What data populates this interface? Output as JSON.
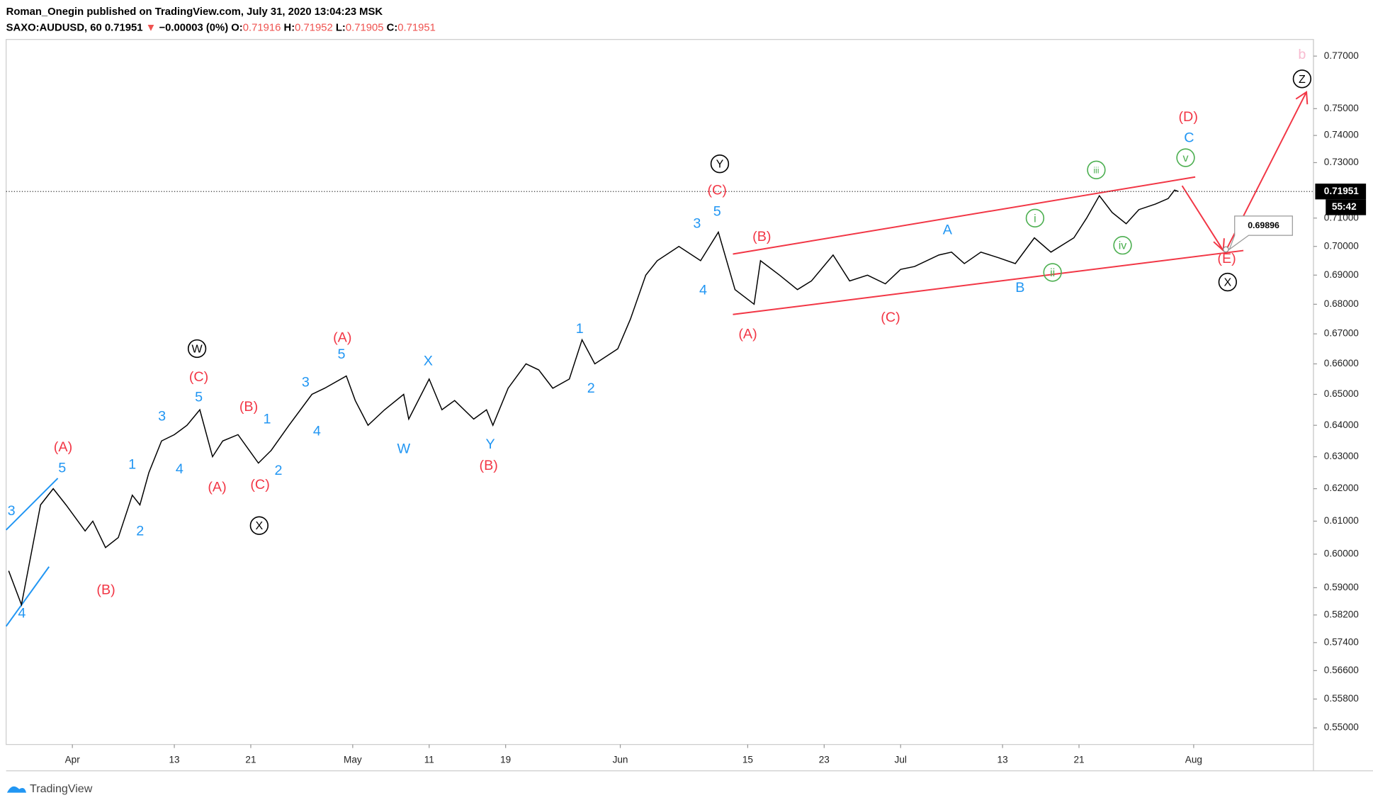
{
  "header": {
    "line1": "Roman_Onegin published on TradingView.com, July 31, 2020 13:04:23 MSK",
    "symbol": "SAXO:AUDUSD, 60",
    "last": "0.71951",
    "arrow": "▼",
    "change": "−0.00003 (0%)",
    "o_label": "O:",
    "o": "0.71916",
    "h_label": "H:",
    "h": "0.71952",
    "l_label": "L:",
    "l": "0.71905",
    "c_label": "C:",
    "c": "0.71951"
  },
  "footer": {
    "brand": "TradingView"
  },
  "chart_data": {
    "type": "line",
    "log_scale": true,
    "color": "#000000",
    "x": [
      -5,
      -4,
      -2.5,
      -1.5,
      -0.5,
      1,
      1.6,
      2.6,
      3.6,
      4.7,
      5.3,
      6,
      7,
      8,
      9,
      10,
      11,
      11.8,
      13,
      14.6,
      15.6,
      17,
      18.8,
      19.8,
      21.5,
      22.2,
      23.2,
      24.5,
      26,
      26.4,
      28,
      29,
      30,
      31.5,
      32.5,
      33,
      34.2,
      35.6,
      36.6,
      37.7,
      39,
      40,
      41,
      42.8,
      43.8,
      45,
      45.9,
      47.6,
      49.3,
      50.7,
      52,
      53.5,
      54,
      55.5,
      56.9,
      58,
      59.7,
      61,
      62.4,
      63.8,
      65,
      66.1,
      68,
      69,
      70,
      71.3,
      72.7,
      74,
      75.5,
      76.8,
      78.6,
      79.6,
      80.6,
      81.6,
      82.7,
      83.7,
      85,
      86,
      86.5,
      86.8
    ],
    "values": [
      0.595,
      0.585,
      0.615,
      0.62,
      0.615,
      0.607,
      0.61,
      0.602,
      0.605,
      0.618,
      0.615,
      0.625,
      0.635,
      0.637,
      0.64,
      0.645,
      0.63,
      0.635,
      0.637,
      0.628,
      0.632,
      0.64,
      0.65,
      0.652,
      0.656,
      0.648,
      0.64,
      0.645,
      0.65,
      0.642,
      0.655,
      0.645,
      0.648,
      0.642,
      0.645,
      0.64,
      0.652,
      0.66,
      0.658,
      0.652,
      0.655,
      0.668,
      0.66,
      0.665,
      0.675,
      0.69,
      0.695,
      0.7,
      0.695,
      0.705,
      0.685,
      0.68,
      0.695,
      0.69,
      0.685,
      0.688,
      0.697,
      0.688,
      0.69,
      0.687,
      0.692,
      0.693,
      0.697,
      0.698,
      0.694,
      0.698,
      0.696,
      0.694,
      0.703,
      0.698,
      0.703,
      0.71,
      0.718,
      0.712,
      0.708,
      0.713,
      0.715,
      0.717,
      0.72,
      0.7195
    ],
    "xlim": [
      -5.2,
      97.4
    ],
    "xticks": [
      {
        "value": 0,
        "label": "Apr"
      },
      {
        "value": 8,
        "label": "13"
      },
      {
        "value": 14,
        "label": "21"
      },
      {
        "value": 22,
        "label": "May"
      },
      {
        "value": 28,
        "label": "11"
      },
      {
        "value": 34,
        "label": "19"
      },
      {
        "value": 43,
        "label": "Jun"
      },
      {
        "value": 53,
        "label": "15"
      },
      {
        "value": 59,
        "label": "23"
      },
      {
        "value": 65,
        "label": "Jul"
      },
      {
        "value": 73,
        "label": "13"
      },
      {
        "value": 79,
        "label": "21"
      },
      {
        "value": 88,
        "label": "Aug"
      }
    ],
    "ylim": [
      0.55,
      0.77
    ],
    "yticks": [
      {
        "value": 0.77,
        "label": "0.77000"
      },
      {
        "value": 0.75,
        "label": "0.75000"
      },
      {
        "value": 0.74,
        "label": "0.74000"
      },
      {
        "value": 0.73,
        "label": "0.73000"
      },
      {
        "value": 0.71,
        "label": "0.71000"
      },
      {
        "value": 0.7,
        "label": "0.70000"
      },
      {
        "value": 0.69,
        "label": "0.69000"
      },
      {
        "value": 0.68,
        "label": "0.68000"
      },
      {
        "value": 0.67,
        "label": "0.67000"
      },
      {
        "value": 0.66,
        "label": "0.66000"
      },
      {
        "value": 0.65,
        "label": "0.65000"
      },
      {
        "value": 0.64,
        "label": "0.64000"
      },
      {
        "value": 0.63,
        "label": "0.63000"
      },
      {
        "value": 0.62,
        "label": "0.62000"
      },
      {
        "value": 0.61,
        "label": "0.61000"
      },
      {
        "value": 0.6,
        "label": "0.60000"
      },
      {
        "value": 0.59,
        "label": "0.59000"
      },
      {
        "value": 0.582,
        "label": "0.58200"
      },
      {
        "value": 0.574,
        "label": "0.57400"
      },
      {
        "value": 0.566,
        "label": "0.56600"
      },
      {
        "value": 0.558,
        "label": "0.55800"
      },
      {
        "value": 0.55,
        "label": "0.55000"
      }
    ],
    "last_price": {
      "value": 0.71951,
      "label": "0.71951"
    },
    "countdown": "55:42",
    "target": {
      "value": 0.69896,
      "label": "0.69896"
    },
    "wave_labels": [
      {
        "text": "3",
        "color": "#2196f3"
      },
      {
        "text": "4",
        "color": "#2196f3"
      },
      {
        "text": "5",
        "color": "#2196f3"
      },
      {
        "text": "1",
        "color": "#2196f3"
      },
      {
        "text": "2",
        "color": "#2196f3"
      },
      {
        "text": "3",
        "color": "#2196f3"
      },
      {
        "text": "4",
        "color": "#2196f3"
      },
      {
        "text": "5",
        "color": "#2196f3"
      },
      {
        "text": "1",
        "color": "#2196f3"
      },
      {
        "text": "2",
        "color": "#2196f3"
      },
      {
        "text": "3",
        "color": "#2196f3"
      },
      {
        "text": "4",
        "color": "#2196f3"
      },
      {
        "text": "5",
        "color": "#2196f3"
      },
      {
        "text": "W",
        "color": "#2196f3"
      },
      {
        "text": "X",
        "color": "#2196f3"
      },
      {
        "text": "Y",
        "color": "#2196f3"
      },
      {
        "text": "1",
        "color": "#2196f3"
      },
      {
        "text": "2",
        "color": "#2196f3"
      },
      {
        "text": "3",
        "color": "#2196f3"
      },
      {
        "text": "4",
        "color": "#2196f3"
      },
      {
        "text": "5",
        "color": "#2196f3"
      },
      {
        "text": "A",
        "color": "#2196f3"
      },
      {
        "text": "B",
        "color": "#2196f3"
      },
      {
        "text": "C",
        "color": "#2196f3"
      },
      {
        "text": "(A)",
        "color": "#f23645"
      },
      {
        "text": "(B)",
        "color": "#f23645"
      },
      {
        "text": "(C)",
        "color": "#f23645"
      },
      {
        "text": "(A)",
        "color": "#f23645"
      },
      {
        "text": "(B)",
        "color": "#f23645"
      },
      {
        "text": "(C)",
        "color": "#f23645"
      },
      {
        "text": "(A)",
        "color": "#f23645"
      },
      {
        "text": "(B)",
        "color": "#f23645"
      },
      {
        "text": "(C)",
        "color": "#f23645"
      },
      {
        "text": "(B)",
        "color": "#f23645"
      },
      {
        "text": "(A)",
        "color": "#f23645"
      },
      {
        "text": "(C)",
        "color": "#f23645"
      },
      {
        "text": "(D)",
        "color": "#f23645"
      },
      {
        "text": "(E)",
        "color": "#f23645"
      },
      {
        "text": "W",
        "color": "#000000",
        "circled": true
      },
      {
        "text": "X",
        "color": "#000000",
        "circled": true
      },
      {
        "text": "Y",
        "color": "#000000",
        "circled": true
      },
      {
        "text": "X",
        "color": "#000000",
        "circled": true
      },
      {
        "text": "Z",
        "color": "#000000",
        "circled": true
      },
      {
        "text": "i",
        "color": "#4caf50",
        "circled": true
      },
      {
        "text": "ii",
        "color": "#4caf50",
        "circled": true
      },
      {
        "text": "iii",
        "color": "#4caf50",
        "circled": true
      },
      {
        "text": "iv",
        "color": "#4caf50",
        "circled": true
      },
      {
        "text": "v",
        "color": "#4caf50",
        "circled": true
      },
      {
        "text": "b",
        "color": "#f8bbd0"
      }
    ]
  }
}
